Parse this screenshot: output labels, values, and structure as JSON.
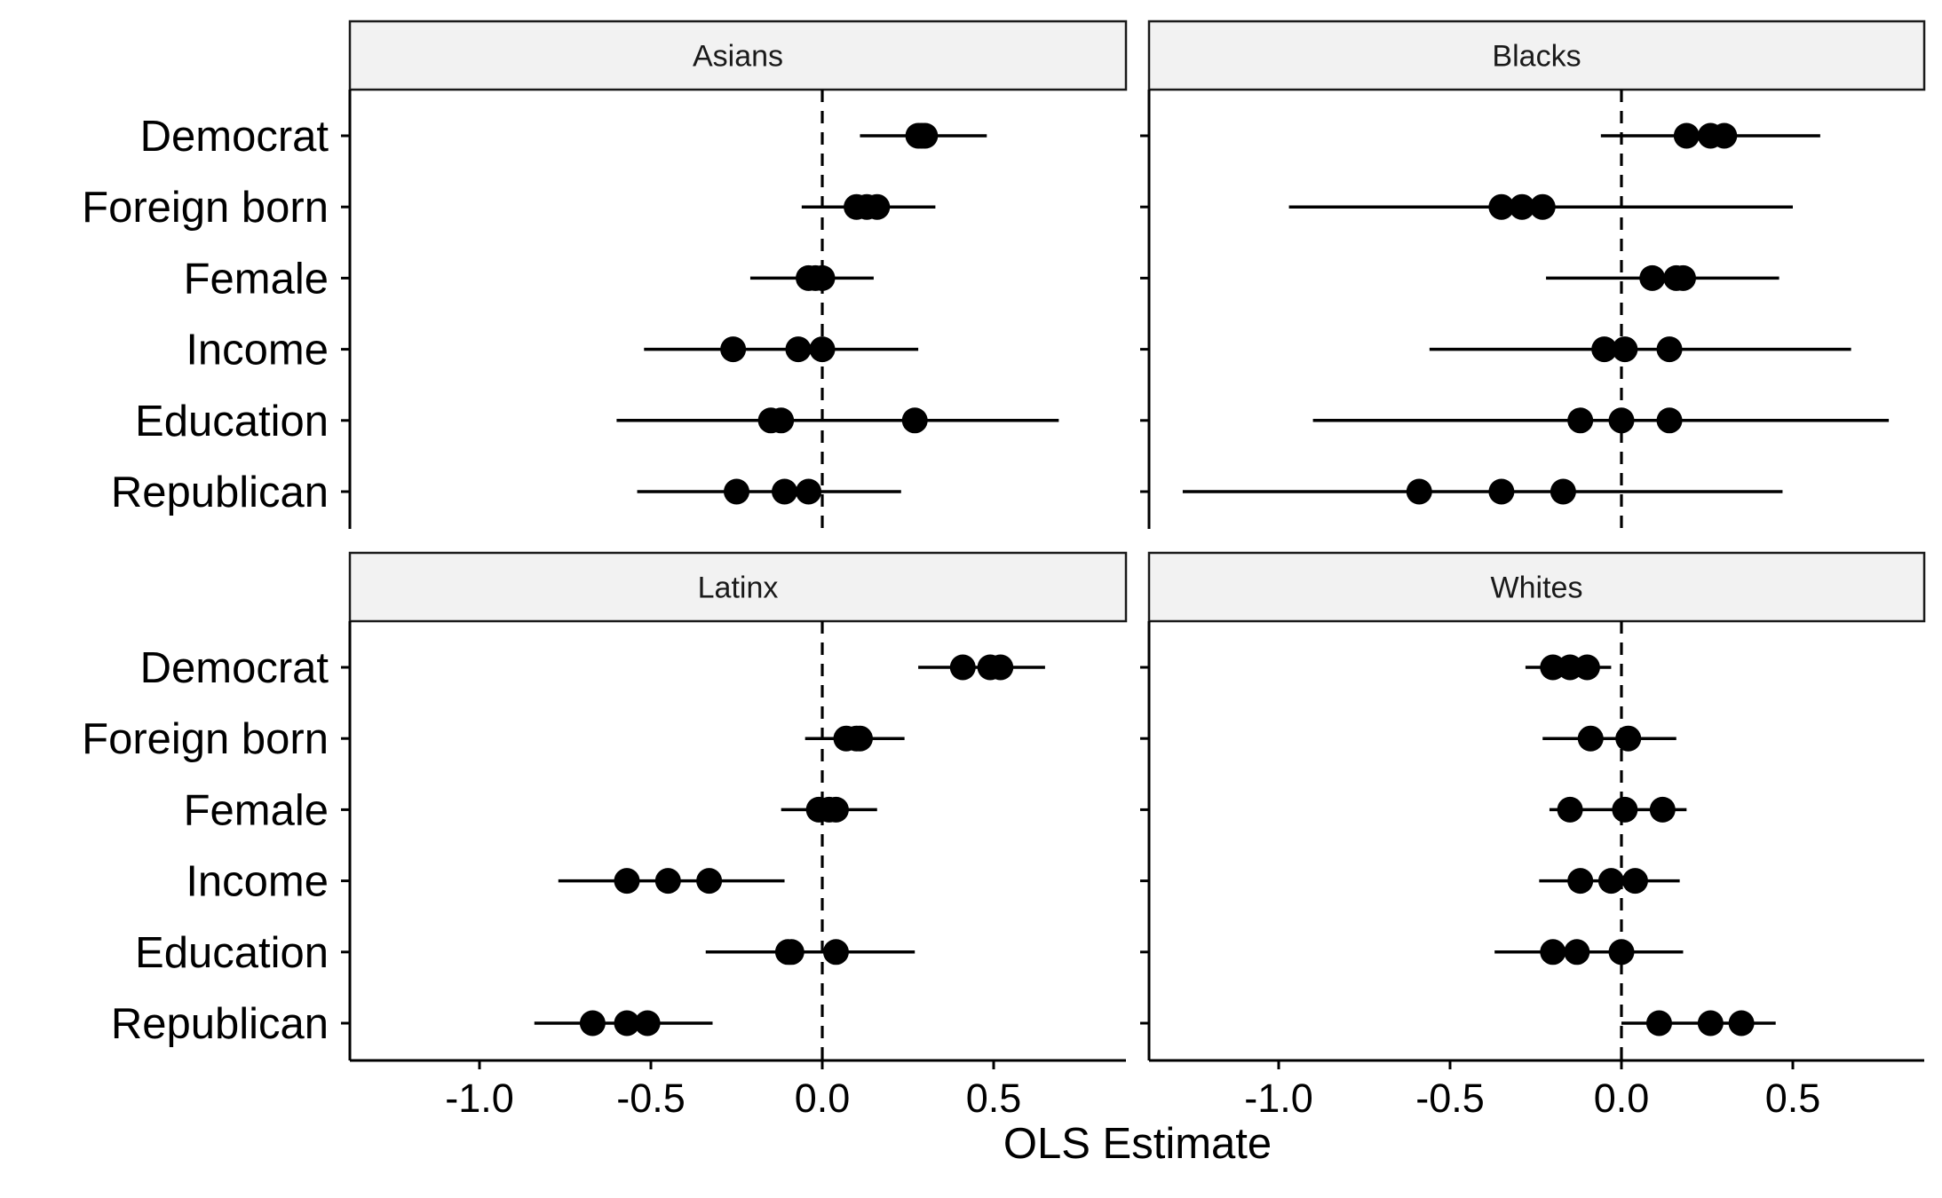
{
  "chart_data": {
    "type": "scatter",
    "subtype": "faceted coefficient plot with confidence intervals",
    "xlabel": "OLS Estimate",
    "ylabel": "",
    "xlim": [
      -1.4,
      0.9
    ],
    "xticks": [
      -1.0,
      -0.5,
      0.0,
      0.5
    ],
    "xtick_labels": [
      "-1.0",
      "-0.5",
      "0.0",
      "0.5"
    ],
    "reference_line": 0.0,
    "grid": false,
    "legend": "none",
    "categories": [
      "Democrat",
      "Foreign born",
      "Female",
      "Income",
      "Education",
      "Republican"
    ],
    "panels": [
      {
        "name": "Asians",
        "rows": [
          {
            "category": "Democrat",
            "estimates": [
              0.28,
              0.29,
              0.3
            ],
            "ci": [
              0.11,
              0.48
            ]
          },
          {
            "category": "Foreign born",
            "estimates": [
              0.1,
              0.13,
              0.16
            ],
            "ci": [
              -0.06,
              0.33
            ]
          },
          {
            "category": "Female",
            "estimates": [
              -0.04,
              -0.02,
              0.0
            ],
            "ci": [
              -0.21,
              0.15
            ]
          },
          {
            "category": "Income",
            "estimates": [
              -0.26,
              -0.07,
              0.0
            ],
            "ci": [
              -0.52,
              0.28
            ]
          },
          {
            "category": "Education",
            "estimates": [
              -0.15,
              -0.12,
              0.27
            ],
            "ci": [
              -0.6,
              0.69
            ]
          },
          {
            "category": "Republican",
            "estimates": [
              -0.25,
              -0.11,
              -0.04
            ],
            "ci": [
              -0.54,
              0.23
            ]
          }
        ]
      },
      {
        "name": "Blacks",
        "rows": [
          {
            "category": "Democrat",
            "estimates": [
              0.19,
              0.26,
              0.3
            ],
            "ci": [
              -0.06,
              0.58
            ]
          },
          {
            "category": "Foreign born",
            "estimates": [
              -0.35,
              -0.29,
              -0.23
            ],
            "ci": [
              -0.97,
              0.5
            ]
          },
          {
            "category": "Female",
            "estimates": [
              0.09,
              0.16,
              0.18
            ],
            "ci": [
              -0.22,
              0.46
            ]
          },
          {
            "category": "Income",
            "estimates": [
              -0.05,
              0.01,
              0.14
            ],
            "ci": [
              -0.56,
              0.67
            ]
          },
          {
            "category": "Education",
            "estimates": [
              -0.12,
              0.0,
              0.14
            ],
            "ci": [
              -0.9,
              0.78
            ]
          },
          {
            "category": "Republican",
            "estimates": [
              -0.59,
              -0.35,
              -0.17
            ],
            "ci": [
              -1.28,
              0.47
            ]
          }
        ]
      },
      {
        "name": "Latinx",
        "rows": [
          {
            "category": "Democrat",
            "estimates": [
              0.41,
              0.49,
              0.52
            ],
            "ci": [
              0.28,
              0.65
            ]
          },
          {
            "category": "Foreign born",
            "estimates": [
              0.07,
              0.1,
              0.11
            ],
            "ci": [
              -0.05,
              0.24
            ]
          },
          {
            "category": "Female",
            "estimates": [
              -0.01,
              0.02,
              0.04
            ],
            "ci": [
              -0.12,
              0.16
            ]
          },
          {
            "category": "Income",
            "estimates": [
              -0.57,
              -0.45,
              -0.33
            ],
            "ci": [
              -0.77,
              -0.11
            ]
          },
          {
            "category": "Education",
            "estimates": [
              -0.1,
              -0.09,
              0.04
            ],
            "ci": [
              -0.34,
              0.27
            ]
          },
          {
            "category": "Republican",
            "estimates": [
              -0.67,
              -0.57,
              -0.51
            ],
            "ci": [
              -0.84,
              -0.32
            ]
          }
        ]
      },
      {
        "name": "Whites",
        "rows": [
          {
            "category": "Democrat",
            "estimates": [
              -0.2,
              -0.15,
              -0.1
            ],
            "ci": [
              -0.28,
              -0.03
            ]
          },
          {
            "category": "Foreign born",
            "estimates": [
              -0.09,
              0.02
            ],
            "ci": [
              -0.23,
              0.16
            ]
          },
          {
            "category": "Female",
            "estimates": [
              -0.15,
              0.01,
              0.12
            ],
            "ci": [
              -0.21,
              0.19
            ]
          },
          {
            "category": "Income",
            "estimates": [
              -0.12,
              -0.03,
              0.04
            ],
            "ci": [
              -0.24,
              0.17
            ]
          },
          {
            "category": "Education",
            "estimates": [
              -0.2,
              -0.13,
              0.0
            ],
            "ci": [
              -0.37,
              0.18
            ]
          },
          {
            "category": "Republican",
            "estimates": [
              0.11,
              0.26,
              0.35
            ],
            "ci": [
              0.0,
              0.45
            ]
          }
        ]
      }
    ]
  }
}
